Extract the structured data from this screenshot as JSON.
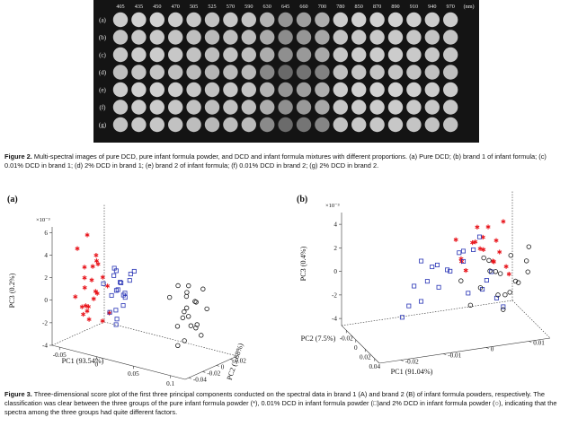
{
  "figure2": {
    "wavelengths": [
      "405",
      "435",
      "450",
      "470",
      "505",
      "525",
      "570",
      "590",
      "630",
      "645",
      "660",
      "700",
      "780",
      "850",
      "870",
      "890",
      "910",
      "940",
      "970"
    ],
    "unit": "(nm)",
    "row_labels": [
      "(a)",
      "(b)",
      "(c)",
      "(d)",
      "(e)",
      "(f)",
      "(g)"
    ],
    "caption_label": "Figure 2.",
    "caption_text": " Multi-spectral images of pure DCD, pure infant formula powder, and DCD and infant formula mixtures with different proportions. (a) Pure DCD; (b) brand 1 of infant formula; (c) 0.01% DCD in brand 1; (d) 2% DCD in brand 1; (e) brand 2 of infant formula; (f) 0.01% DCD in brand 2; (g) 2% DCD in brand 2."
  },
  "figure3": {
    "caption_label": "Figure 3.",
    "caption_text": " Three-dimensional score plot of the first three principal components conducted on the spectral data in brand 1 (A) and brand 2 (B) of infant formula powders, respectively. The classification was clear between the three groups of the pure infant formula powder (*), 0.01% DCD in infant formula powder (□)and 2% DCD in infant formula powder (○), indicating that the spectra among the three groups had quite different factors."
  },
  "chart_data": [
    {
      "type": "scatter",
      "panel": "(a)",
      "title": "",
      "xlabel": "PC1 (93.54%)",
      "ylabel": "PC2 (5.68%)",
      "zlabel": "PC3 (0.2%)",
      "z_exponent": "×10⁻³",
      "xticks": [
        "-0.05",
        "0",
        "0.05",
        "0.1"
      ],
      "yticks": [
        "-0.04",
        "-0.02",
        "0",
        "0.02"
      ],
      "zticks": [
        "-4",
        "-2",
        "0",
        "2",
        "4",
        "6"
      ],
      "series": [
        {
          "marker": "asterisk",
          "color": "#e8141b",
          "label": "*",
          "points": [
            [
              -0.04,
              -0.03,
              4.5
            ],
            [
              -0.035,
              -0.025,
              2.8
            ],
            [
              -0.03,
              -0.02,
              1.6
            ],
            [
              -0.038,
              -0.035,
              0.4
            ],
            [
              -0.025,
              -0.03,
              -0.4
            ],
            [
              -0.028,
              -0.015,
              3.2
            ],
            [
              -0.02,
              -0.025,
              0.9
            ],
            [
              -0.032,
              -0.03,
              -1.2
            ],
            [
              -0.015,
              -0.02,
              2.1
            ],
            [
              -0.022,
              -0.035,
              -0.6
            ],
            [
              -0.036,
              -0.02,
              5.5
            ],
            [
              -0.018,
              -0.01,
              1.0
            ],
            [
              -0.026,
              -0.028,
              -1.6
            ],
            [
              -0.03,
              -0.012,
              0.2
            ],
            [
              -0.012,
              -0.03,
              3.6
            ],
            [
              -0.04,
              -0.018,
              -0.9
            ],
            [
              -0.02,
              -0.015,
              -2.0
            ],
            [
              -0.034,
              -0.026,
              1.9
            ],
            [
              -0.024,
              -0.02,
              3.9
            ],
            [
              -0.016,
              -0.032,
              0.5
            ],
            [
              -0.028,
              -0.036,
              -0.3
            ],
            [
              -0.038,
              -0.01,
              2.4
            ],
            [
              -0.01,
              -0.016,
              -1.1
            ],
            [
              -0.03,
              -0.03,
              1.2
            ]
          ]
        },
        {
          "marker": "square",
          "color": "#2733b5",
          "label": "□",
          "points": [
            [
              0.0,
              -0.02,
              2.5
            ],
            [
              0.005,
              -0.015,
              1.8
            ],
            [
              0.008,
              -0.025,
              3.2
            ],
            [
              -0.005,
              -0.018,
              0.6
            ],
            [
              0.012,
              -0.01,
              2.0
            ],
            [
              0.002,
              -0.028,
              -0.5
            ],
            [
              0.015,
              -0.02,
              1.2
            ],
            [
              0.01,
              -0.03,
              3.6
            ],
            [
              -0.002,
              -0.012,
              1.0
            ],
            [
              0.006,
              -0.022,
              -1.2
            ],
            [
              0.018,
              -0.015,
              2.8
            ],
            [
              0.004,
              -0.008,
              0.3
            ],
            [
              0.009,
              -0.026,
              1.5
            ],
            [
              0.014,
              -0.032,
              0.0
            ],
            [
              0.0,
              -0.035,
              2.2
            ],
            [
              0.02,
              -0.012,
              3.0
            ],
            [
              0.003,
              -0.02,
              -1.8
            ],
            [
              0.011,
              -0.018,
              0.9
            ],
            [
              0.016,
              -0.028,
              2.4
            ],
            [
              0.007,
              -0.014,
              -0.2
            ]
          ]
        },
        {
          "marker": "circle",
          "color": "#1a1a1a",
          "label": "○",
          "points": [
            [
              0.07,
              0.01,
              1.0
            ],
            [
              0.075,
              0.005,
              0.2
            ],
            [
              0.08,
              0.0,
              1.8
            ],
            [
              0.065,
              0.012,
              -0.5
            ],
            [
              0.072,
              -0.005,
              -1.2
            ],
            [
              0.085,
              0.008,
              0.8
            ],
            [
              0.078,
              0.015,
              -1.8
            ],
            [
              0.068,
              0.0,
              2.2
            ],
            [
              0.082,
              -0.008,
              -0.2
            ],
            [
              0.09,
              0.004,
              -1.0
            ],
            [
              0.074,
              0.018,
              0.4
            ],
            [
              0.088,
              0.012,
              -2.2
            ],
            [
              0.066,
              -0.01,
              1.4
            ],
            [
              0.079,
              -0.012,
              -2.6
            ],
            [
              0.083,
              0.02,
              1.6
            ],
            [
              0.071,
              0.006,
              -2.8
            ],
            [
              0.086,
              -0.004,
              2.6
            ],
            [
              0.076,
              0.01,
              -1.5
            ],
            [
              0.092,
              0.016,
              0.1
            ],
            [
              0.069,
              0.014,
              -0.9
            ]
          ]
        }
      ]
    },
    {
      "type": "scatter",
      "panel": "(b)",
      "title": "",
      "xlabel": "PC1 (91.04%)",
      "ylabel": "PC2 (7.5%)",
      "zlabel": "PC3 (0.4%)",
      "z_exponent": "×10⁻³",
      "xticks": [
        "-0.02",
        "0",
        "0.02",
        "0.04"
      ],
      "yticks": [
        "-0.02",
        "-0.01",
        "0",
        "0.01"
      ],
      "zticks": [
        "-4",
        "-2",
        "0",
        "2",
        "4"
      ],
      "series": [
        {
          "marker": "asterisk",
          "color": "#e8141b",
          "label": "*",
          "points": [
            [
              -0.018,
              0.008,
              2.5
            ],
            [
              -0.015,
              0.004,
              1.5
            ],
            [
              -0.012,
              0.01,
              0.5
            ],
            [
              -0.02,
              0.002,
              -0.2
            ],
            [
              -0.01,
              0.006,
              1.0
            ],
            [
              -0.016,
              0.012,
              -1.0
            ],
            [
              -0.014,
              0.0,
              2.0
            ],
            [
              -0.008,
              0.008,
              0.0
            ],
            [
              -0.019,
              0.01,
              1.2
            ],
            [
              -0.011,
              0.002,
              -0.6
            ],
            [
              -0.013,
              0.011,
              3.0
            ],
            [
              -0.017,
              0.006,
              0.8
            ],
            [
              -0.009,
              0.004,
              1.8
            ],
            [
              -0.015,
              0.009,
              -0.4
            ],
            [
              -0.012,
              0.001,
              0.4
            ],
            [
              -0.02,
              0.007,
              1.6
            ],
            [
              -0.01,
              0.012,
              -1.4
            ],
            [
              -0.014,
              0.005,
              2.8
            ]
          ]
        },
        {
          "marker": "square",
          "color": "#2733b5",
          "label": "□",
          "points": [
            [
              0.005,
              0.002,
              1.8
            ],
            [
              0.01,
              -0.004,
              0.5
            ],
            [
              0.015,
              0.004,
              -0.5
            ],
            [
              0.008,
              -0.008,
              1.0
            ],
            [
              0.012,
              0.0,
              -1.5
            ],
            [
              0.02,
              -0.002,
              2.5
            ],
            [
              0.004,
              -0.006,
              -1.0
            ],
            [
              0.016,
              -0.01,
              0.2
            ],
            [
              0.018,
              0.006,
              -2.0
            ],
            [
              0.009,
              0.003,
              3.0
            ],
            [
              0.006,
              -0.012,
              -0.5
            ],
            [
              0.022,
              -0.006,
              1.2
            ],
            [
              0.013,
              -0.014,
              -1.8
            ],
            [
              0.002,
              0.0,
              0.8
            ],
            [
              0.024,
              0.002,
              -0.8
            ],
            [
              0.011,
              -0.002,
              2.0
            ],
            [
              0.017,
              -0.016,
              -2.5
            ],
            [
              0.007,
              0.006,
              -0.2
            ],
            [
              0.019,
              -0.008,
              1.6
            ],
            [
              0.014,
              0.008,
              -3.0
            ],
            [
              0.003,
              -0.01,
              1.4
            ],
            [
              0.021,
              -0.012,
              -1.2
            ]
          ]
        },
        {
          "marker": "circle",
          "color": "#1a1a1a",
          "label": "○",
          "points": [
            [
              0.03,
              0.008,
              2.0
            ],
            [
              0.034,
              0.004,
              1.0
            ],
            [
              0.038,
              0.0,
              0.0
            ],
            [
              0.028,
              0.01,
              -0.5
            ],
            [
              0.036,
              0.006,
              -1.0
            ],
            [
              0.032,
              0.012,
              2.6
            ],
            [
              0.04,
              0.002,
              1.4
            ],
            [
              0.026,
              0.006,
              0.4
            ],
            [
              0.035,
              -0.002,
              -1.5
            ],
            [
              0.031,
              0.009,
              -0.2
            ],
            [
              0.039,
              0.011,
              0.8
            ],
            [
              0.029,
              0.003,
              1.8
            ],
            [
              0.037,
              0.007,
              -0.8
            ],
            [
              0.033,
              -0.004,
              0.6
            ],
            [
              0.041,
              0.005,
              -2.0
            ],
            [
              0.027,
              0.012,
              1.2
            ],
            [
              0.036,
              0.001,
              2.4
            ],
            [
              0.03,
              0.005,
              -1.2
            ]
          ]
        }
      ]
    }
  ]
}
